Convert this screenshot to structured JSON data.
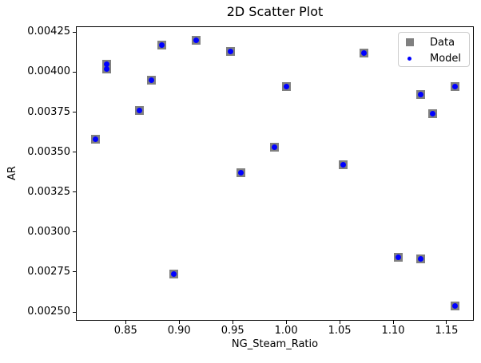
{
  "figure_title": "2D Scatter Plot",
  "chart_data": {
    "type": "scatter",
    "title": "2D Scatter Plot",
    "xlabel": "NG_Steam_Ratio",
    "ylabel": "AR",
    "xlim": [
      0.8035,
      1.1754
    ],
    "ylim": [
      0.0024456,
      0.0042869
    ],
    "x_ticks": [
      0.85,
      0.9,
      0.95,
      1.0,
      1.05,
      1.1,
      1.15
    ],
    "y_ticks": [
      0.0025,
      0.00275,
      0.003,
      0.00325,
      0.0035,
      0.00375,
      0.004,
      0.00425
    ],
    "grid": false,
    "legend_position": "upper right",
    "series": [
      {
        "name": "Data",
        "marker": "square",
        "color": "#808080",
        "points": [
          [
            0.822,
            0.00358
          ],
          [
            0.832,
            0.00405
          ],
          [
            0.832,
            0.00402
          ],
          [
            0.863,
            0.00376
          ],
          [
            0.874,
            0.00395
          ],
          [
            0.884,
            0.00417
          ],
          [
            0.895,
            0.00274
          ],
          [
            0.916,
            0.0042
          ],
          [
            0.948,
            0.00413
          ],
          [
            0.958,
            0.00337
          ],
          [
            0.989,
            0.00353
          ],
          [
            1.0,
            0.00391
          ],
          [
            1.053,
            0.00342
          ],
          [
            1.073,
            0.00412
          ],
          [
            1.105,
            0.00284
          ],
          [
            1.126,
            0.00283
          ],
          [
            1.126,
            0.00386
          ],
          [
            1.137,
            0.00374
          ],
          [
            1.158,
            0.00391
          ],
          [
            1.158,
            0.00254
          ]
        ]
      },
      {
        "name": "Model",
        "marker": "circle",
        "color": "#0000ff",
        "points": [
          [
            0.822,
            0.00358
          ],
          [
            0.832,
            0.00405
          ],
          [
            0.832,
            0.00402
          ],
          [
            0.863,
            0.00376
          ],
          [
            0.874,
            0.00395
          ],
          [
            0.884,
            0.00417
          ],
          [
            0.895,
            0.00274
          ],
          [
            0.916,
            0.0042
          ],
          [
            0.948,
            0.00413
          ],
          [
            0.958,
            0.00337
          ],
          [
            0.989,
            0.00353
          ],
          [
            1.0,
            0.00391
          ],
          [
            1.053,
            0.00342
          ],
          [
            1.073,
            0.00412
          ],
          [
            1.105,
            0.00284
          ],
          [
            1.126,
            0.00283
          ],
          [
            1.126,
            0.00386
          ],
          [
            1.137,
            0.00374
          ],
          [
            1.158,
            0.00391
          ],
          [
            1.158,
            0.00254
          ]
        ]
      }
    ]
  }
}
